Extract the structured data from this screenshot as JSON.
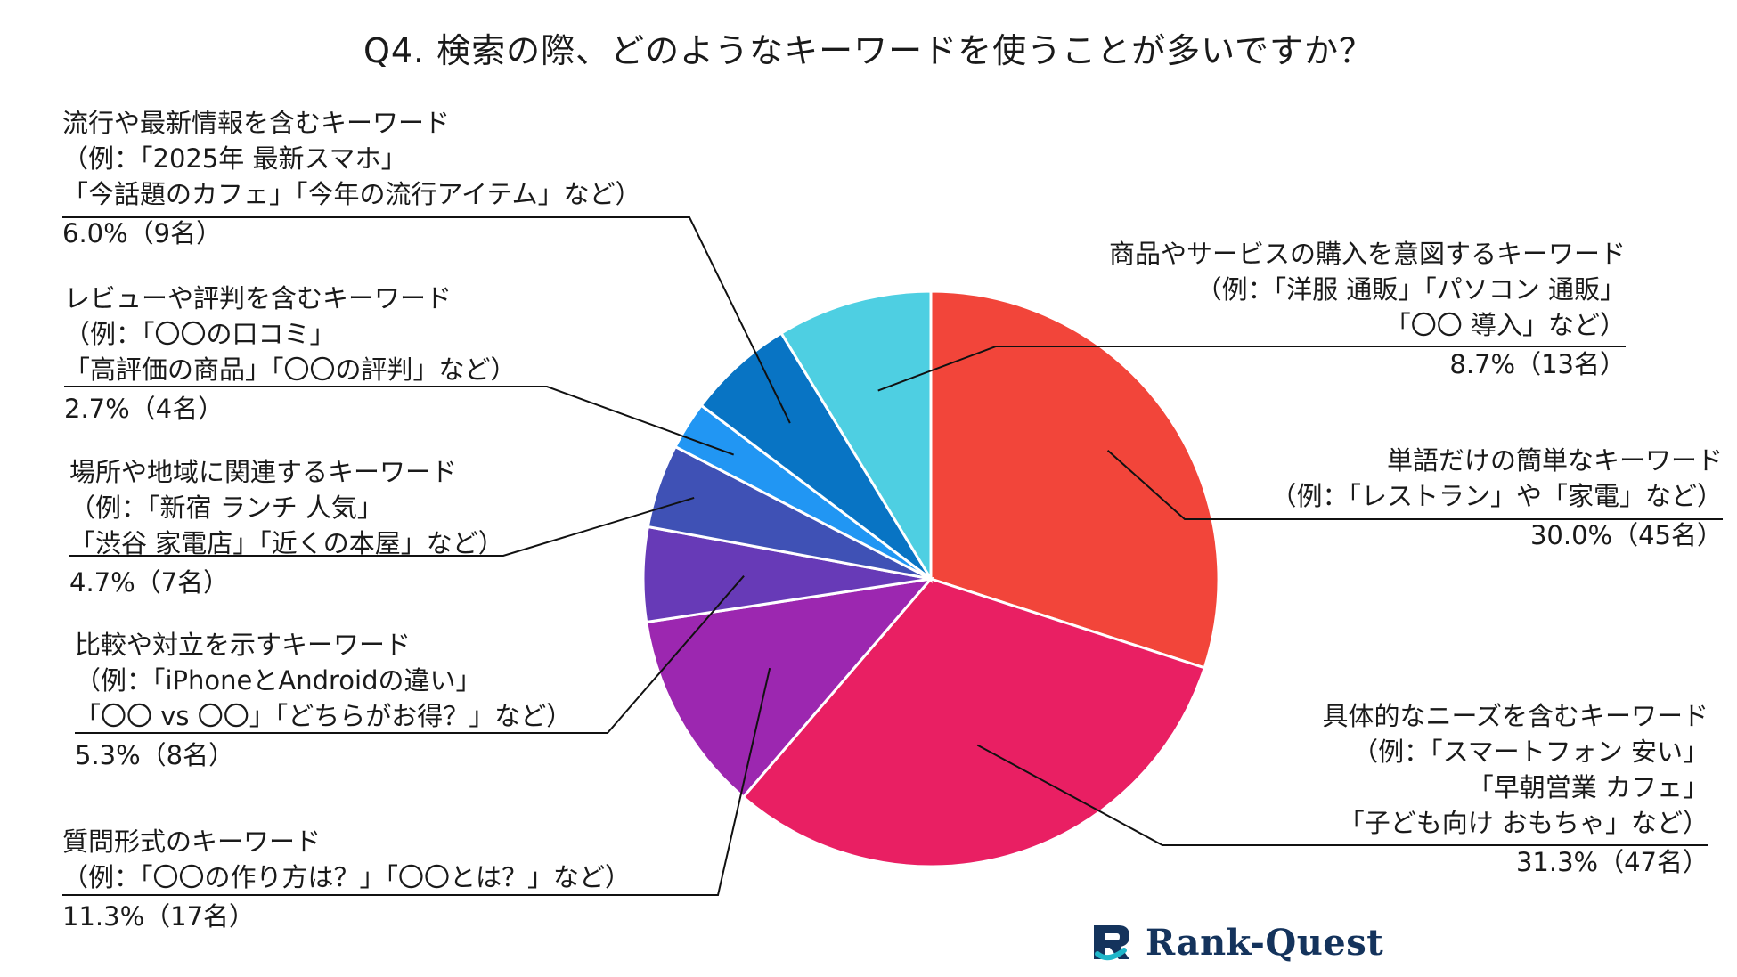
{
  "chart_data": {
    "type": "pie",
    "title": "Q4. 検索の際、どのようなキーワードを使うことが多いですか？",
    "slices": [
      {
        "lines": [
          "単語だけの簡単なキーワード",
          "（例：「レストラン」や「家電」など）"
        ],
        "value_label": "30.0%（45名）",
        "percent": 30.0,
        "count": 45,
        "color": "#f2453a"
      },
      {
        "lines": [
          "具体的なニーズを含むキーワード",
          "（例：「スマートフォン 安い」",
          "「早朝営業 カフェ」",
          "「子ども向け おもちゃ」など）"
        ],
        "value_label": "31.3%（47名）",
        "percent": 31.3,
        "count": 47,
        "color": "#e91f63"
      },
      {
        "lines": [
          "質問形式のキーワード",
          "（例：「〇〇の作り方は？」「〇〇とは？」など）"
        ],
        "value_label": "11.3%（17名）",
        "percent": 11.3,
        "count": 17,
        "color": "#9c27b0"
      },
      {
        "lines": [
          "比較や対立を示すキーワード",
          "（例：「iPhoneとAndroidの違い」",
          "「〇〇 vs 〇〇」「どちらがお得？」など）"
        ],
        "value_label": "5.3%（8名）",
        "percent": 5.3,
        "count": 8,
        "color": "#673ab7"
      },
      {
        "lines": [
          "場所や地域に関連するキーワード",
          "（例：「新宿 ランチ 人気」",
          "「渋谷 家電店」「近くの本屋」など）"
        ],
        "value_label": "4.7%（7名）",
        "percent": 4.7,
        "count": 7,
        "color": "#3f51b5"
      },
      {
        "lines": [
          "レビューや評判を含むキーワード",
          "（例：「〇〇の口コミ」",
          "「高評価の商品」「〇〇の評判」など）"
        ],
        "value_label": "2.7%（4名）",
        "percent": 2.7,
        "count": 4,
        "color": "#2196f3"
      },
      {
        "lines": [
          "流行や最新情報を含むキーワード",
          "（例：「2025年 最新スマホ」",
          "「今話題のカフェ」「今年の流行アイテム」など）"
        ],
        "value_label": "6.0%（9名）",
        "percent": 6.0,
        "count": 9,
        "color": "#0874c4"
      },
      {
        "lines": [
          "商品やサービスの購入を意図するキーワード",
          "（例：「洋服 通販」「パソコン 通販」",
          "「〇〇 導入」など）"
        ],
        "value_label": "8.7%（13名）",
        "percent": 8.7,
        "count": 13,
        "color": "#4ecfe2"
      }
    ],
    "start": "12 o'clock",
    "direction": "clockwise",
    "legend": "none"
  },
  "logo": {
    "text": "Rank-Quest"
  }
}
